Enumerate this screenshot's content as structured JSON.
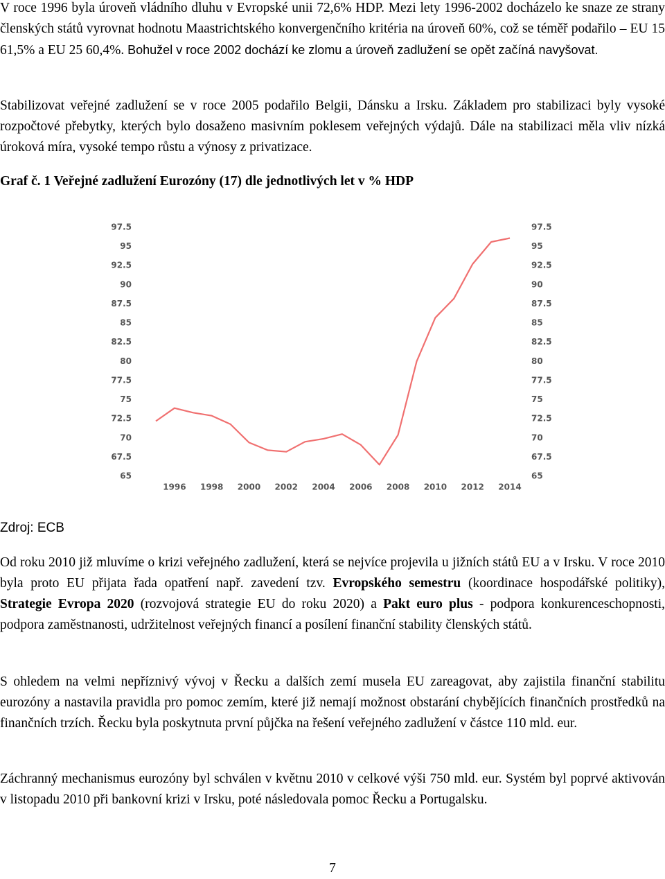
{
  "paragraphs_top": [
    [
      {
        "text": "V roce 1996 byla úroveň vládního dluhu v Evropské unii 72,6% HDP. Mezi lety 1996-2002 docházelo ke snaze ze strany členských států vyrovnat hodnotu Maastrichtského konvergenčního kritéria na úroveň 60%, což se téměř podařilo – EU 15 61,5% a EU 25 60,4%. "
      },
      {
        "text": "Bohužel v roce 2002 dochází ke zlomu a úroveň zadlužení se opět začíná navyšovat.",
        "sans": true
      }
    ],
    [
      {
        "text": "Stabilizovat veřejné zadlužení se v roce 2005 podařilo Belgii, Dánsku a Irsku. Základem pro stabilizaci byly vysoké rozpočtové přebytky, kterých bylo dosaženo masivním poklesem veřejných výdajů. Dále na stabilizaci měla vliv nízká úroková míra, vysoké tempo růstu a výnosy z privatizace."
      }
    ]
  ],
  "caption": "Graf č. 1 Veřejné zadlužení Eurozóny (17) dle jednotlivých let v % HDP",
  "chart_data": {
    "type": "line",
    "x": [
      1995,
      1996,
      1997,
      1998,
      1999,
      2000,
      2001,
      2002,
      2003,
      2004,
      2005,
      2006,
      2007,
      2008,
      2009,
      2010,
      2011,
      2012,
      2013,
      2014
    ],
    "series": [
      {
        "color": "#f07070",
        "values": [
          72.2,
          73.9,
          73.3,
          72.9,
          71.8,
          69.4,
          68.4,
          68.2,
          69.5,
          69.9,
          70.5,
          69.1,
          66.5,
          70.4,
          80.0,
          85.7,
          88.2,
          92.7,
          95.6,
          96.1
        ]
      }
    ],
    "xlim": [
      1995,
      2014
    ],
    "xticks": [
      1996,
      1998,
      2000,
      2002,
      2004,
      2006,
      2008,
      2010,
      2012,
      2014
    ],
    "ylim": [
      65,
      97.5
    ],
    "yticks": [
      65,
      67.5,
      70,
      72.5,
      75,
      77.5,
      80,
      82.5,
      85,
      87.5,
      90,
      92.5,
      95,
      97.5
    ],
    "y2lim": [
      65,
      97.5
    ],
    "y2ticks": [
      65,
      67.5,
      70,
      72.5,
      75,
      77.5,
      80,
      82.5,
      85,
      87.5,
      90,
      92.5,
      95,
      97.5
    ],
    "grid": false
  },
  "source": "Zdroj: ECB",
  "paragraphs_bottom": [
    [
      {
        "text": "Od roku 2010 již mluvíme o krizi veřejného zadlužení, která se nejvíce projevila u jižních států EU a v Irsku. V roce 2010 byla proto EU přijata řada opatření např. zavedení tzv. "
      },
      {
        "text": "Evropského semestru",
        "bold": true
      },
      {
        "text": " (koordinace hospodářské politiky), "
      },
      {
        "text": "Strategie Evropa 2020",
        "bold": true
      },
      {
        "text": " (rozvojová strategie EU do roku 2020) a "
      },
      {
        "text": "Pakt euro plus",
        "bold": true
      },
      {
        "text": " - podpora konkurenceschopnosti, podpora zaměstnanosti, udržitelnost veřejných financí a posílení finanční stability členských států."
      }
    ],
    [
      {
        "text": "S ohledem na velmi nepříznivý vývoj v Řecku a dalších zemí musela EU zareagovat, aby zajistila finanční stabilitu eurozóny a nastavila pravidla pro pomoc zemím, které již nemají možnost obstarání chybějících finančních prostředků na finančních trzích. Řecku byla poskytnuta první půjčka na řešení veřejného zadlužení v částce 110 mld. eur."
      }
    ],
    [
      {
        "text": "Záchranný mechanismus eurozóny byl schválen v květnu 2010 v celkové výši 750 mld. eur. Systém byl poprvé aktivován v listopadu 2010 při bankovní krizi v Irsku, poté následovala pomoc Řecku a Portugalsku."
      }
    ]
  ],
  "page_number": "7"
}
